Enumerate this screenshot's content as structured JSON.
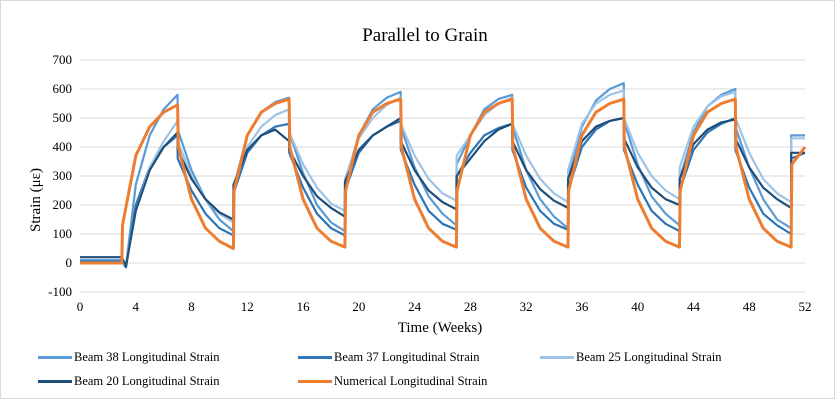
{
  "chart_data": {
    "type": "line",
    "title": "Parallel to Grain",
    "xlabel": "Time (Weeks)",
    "ylabel": "Strain (με)",
    "xlim": [
      0,
      52
    ],
    "ylim": [
      -100,
      700
    ],
    "xticks": [
      0,
      4,
      8,
      12,
      16,
      20,
      24,
      28,
      32,
      36,
      40,
      44,
      48,
      52
    ],
    "yticks": [
      -100,
      0,
      100,
      200,
      300,
      400,
      500,
      600,
      700
    ],
    "grid": {
      "horizontal": true,
      "vertical": false
    },
    "legend_position": "bottom",
    "series": [
      {
        "name": "Beam 38 Longitudinal Strain",
        "color": "#5b9bd5",
        "x": [
          0,
          3,
          3.3,
          4,
          5,
          6,
          7,
          7.01,
          8,
          9,
          10,
          11,
          11.01,
          12,
          13,
          14,
          15,
          15.01,
          16,
          17,
          18,
          19,
          19.01,
          20,
          21,
          22,
          23,
          23.01,
          24,
          25,
          26,
          27,
          27.01,
          28,
          29,
          30,
          31,
          31.01,
          32,
          33,
          34,
          35,
          35.01,
          36,
          37,
          38,
          39,
          39.01,
          40,
          41,
          42,
          43,
          43.01,
          44,
          45,
          46,
          47,
          47.01,
          48,
          49,
          50,
          51,
          51.01,
          52
        ],
        "y": [
          10,
          10,
          -10,
          270,
          440,
          530,
          580,
          460,
          320,
          220,
          150,
          110,
          260,
          440,
          520,
          555,
          570,
          450,
          310,
          200,
          140,
          110,
          280,
          440,
          530,
          570,
          590,
          470,
          330,
          230,
          170,
          130,
          340,
          440,
          530,
          565,
          580,
          470,
          320,
          220,
          160,
          120,
          290,
          470,
          560,
          600,
          620,
          490,
          340,
          230,
          170,
          130,
          290,
          450,
          540,
          580,
          600,
          470,
          330,
          220,
          150,
          120,
          440,
          440
        ]
      },
      {
        "name": "Beam 37 Longitudinal Strain",
        "color": "#2e75b6",
        "x": [
          0,
          3,
          3.3,
          4,
          5,
          6,
          7,
          7.01,
          8,
          9,
          10,
          11,
          11.01,
          12,
          13,
          14,
          15,
          15.01,
          16,
          17,
          18,
          19,
          19.01,
          20,
          21,
          22,
          23,
          23.01,
          24,
          25,
          26,
          27,
          27.01,
          28,
          29,
          30,
          31,
          31.01,
          32,
          33,
          34,
          35,
          35.01,
          36,
          37,
          38,
          39,
          39.01,
          40,
          41,
          42,
          43,
          43.01,
          44,
          45,
          46,
          47,
          47.01,
          48,
          49,
          50,
          51,
          51.01,
          52
        ],
        "y": [
          5,
          5,
          -15,
          200,
          330,
          400,
          440,
          360,
          250,
          170,
          120,
          95,
          240,
          380,
          440,
          470,
          480,
          380,
          260,
          170,
          120,
          95,
          250,
          380,
          440,
          470,
          490,
          390,
          270,
          180,
          135,
          115,
          300,
          380,
          440,
          465,
          480,
          390,
          260,
          180,
          135,
          115,
          250,
          400,
          460,
          490,
          500,
          390,
          270,
          180,
          135,
          110,
          250,
          390,
          450,
          480,
          500,
          390,
          260,
          170,
          130,
          100,
          360,
          380
        ]
      },
      {
        "name": "Beam 25 Longitudinal Strain",
        "color": "#9dc3e6",
        "x": [
          0,
          3,
          3.3,
          4,
          5,
          6,
          7,
          7.01,
          8,
          9,
          10,
          11,
          11.01,
          12,
          13,
          14,
          15,
          15.01,
          16,
          17,
          18,
          19,
          19.01,
          20,
          21,
          22,
          23,
          23.01,
          24,
          25,
          26,
          27,
          27.01,
          28,
          29,
          30,
          31,
          31.01,
          32,
          33,
          34,
          35,
          35.01,
          36,
          37,
          38,
          39,
          39.01,
          40,
          41,
          42,
          43,
          43.01,
          44,
          45,
          46,
          47,
          47.01,
          48,
          49,
          50,
          51,
          51.01,
          52
        ],
        "y": [
          0,
          0,
          -5,
          180,
          330,
          420,
          490,
          420,
          300,
          220,
          170,
          140,
          260,
          400,
          470,
          510,
          530,
          450,
          340,
          260,
          205,
          180,
          290,
          430,
          500,
          545,
          570,
          480,
          370,
          290,
          240,
          215,
          370,
          440,
          510,
          550,
          570,
          480,
          370,
          290,
          240,
          210,
          320,
          480,
          550,
          580,
          595,
          500,
          380,
          300,
          250,
          220,
          330,
          470,
          540,
          575,
          590,
          500,
          380,
          290,
          240,
          210,
          430,
          430
        ]
      },
      {
        "name": "Beam 20 Longitudinal Strain",
        "color": "#1f4e79",
        "x": [
          0,
          3,
          3.3,
          4,
          5,
          6,
          7,
          7.01,
          8,
          9,
          10,
          11,
          11.01,
          12,
          13,
          14,
          15,
          15.01,
          16,
          17,
          18,
          19,
          19.01,
          20,
          21,
          22,
          23,
          23.01,
          24,
          25,
          26,
          27,
          27.01,
          28,
          29,
          30,
          31,
          31.01,
          32,
          33,
          34,
          35,
          35.01,
          36,
          37,
          38,
          39,
          39.01,
          40,
          41,
          42,
          43,
          43.01,
          44,
          45,
          46,
          47,
          47.01,
          48,
          49,
          50,
          51,
          51.01,
          52
        ],
        "y": [
          20,
          20,
          -10,
          180,
          320,
          400,
          450,
          390,
          290,
          220,
          175,
          150,
          270,
          390,
          440,
          460,
          420,
          390,
          300,
          230,
          190,
          160,
          280,
          390,
          440,
          470,
          500,
          420,
          320,
          250,
          210,
          185,
          300,
          360,
          420,
          460,
          480,
          420,
          320,
          255,
          215,
          190,
          290,
          420,
          470,
          490,
          500,
          430,
          330,
          260,
          220,
          200,
          290,
          410,
          460,
          485,
          495,
          430,
          330,
          260,
          220,
          190,
          380,
          380
        ]
      },
      {
        "name": "Numerical Longitudinal Strain",
        "color": "#ed7d31",
        "x": [
          0,
          3,
          3.05,
          4,
          5,
          6,
          7,
          7.05,
          8,
          9,
          10,
          11,
          11.05,
          12,
          13,
          14,
          15,
          15.05,
          16,
          17,
          18,
          19,
          19.05,
          20,
          21,
          22,
          23,
          23.05,
          24,
          25,
          26,
          27,
          27.05,
          28,
          29,
          30,
          31,
          31.05,
          32,
          33,
          34,
          35,
          35.05,
          36,
          37,
          38,
          39,
          39.05,
          40,
          41,
          42,
          43,
          43.05,
          44,
          45,
          46,
          47,
          47.05,
          48,
          49,
          50,
          51,
          51.05,
          52
        ],
        "y": [
          0,
          0,
          130,
          370,
          470,
          520,
          545,
          400,
          220,
          120,
          75,
          50,
          250,
          440,
          520,
          550,
          565,
          400,
          220,
          120,
          75,
          55,
          250,
          440,
          520,
          550,
          565,
          400,
          220,
          120,
          75,
          55,
          250,
          440,
          520,
          550,
          565,
          400,
          220,
          120,
          75,
          55,
          250,
          440,
          520,
          550,
          565,
          400,
          220,
          120,
          75,
          55,
          250,
          440,
          520,
          550,
          565,
          400,
          220,
          120,
          75,
          55,
          340,
          400
        ]
      }
    ]
  }
}
